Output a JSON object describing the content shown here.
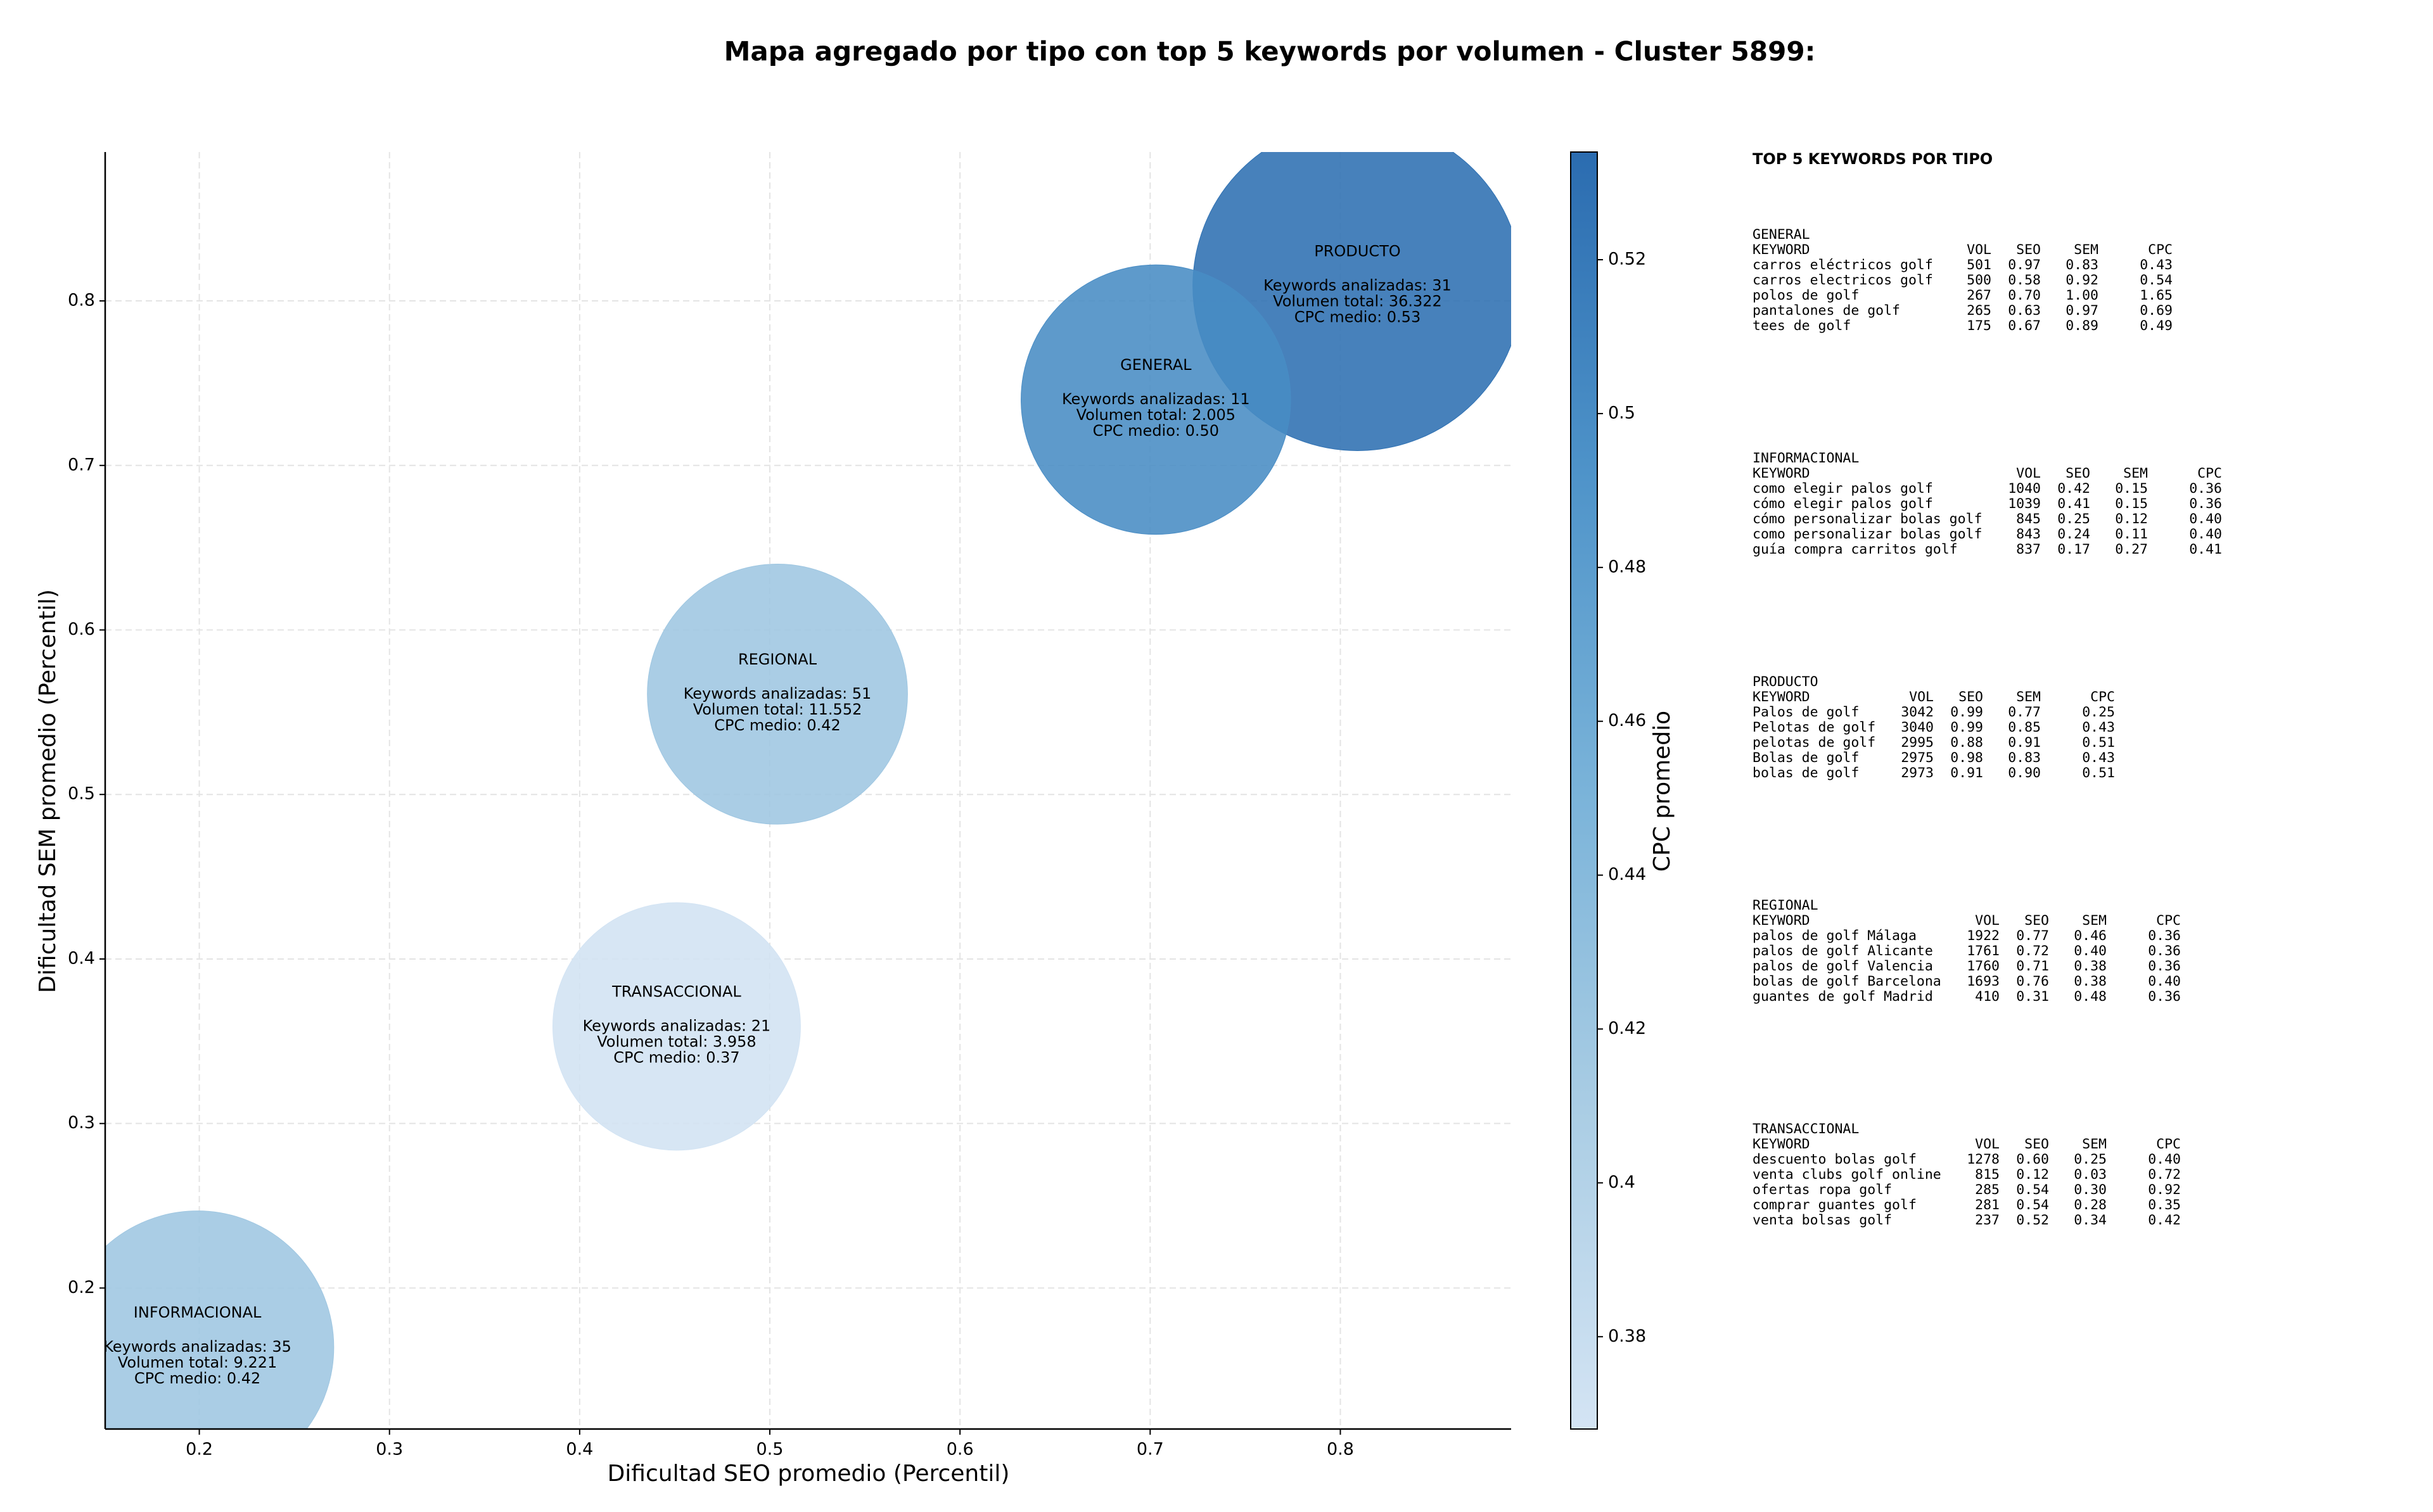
{
  "chart_data": {
    "type": "scatter",
    "title": "Mapa agregado por tipo con top 5 keywords por volumen - Cluster 5899:",
    "xlabel": "Dificultad SEO promedio (Percentil)",
    "ylabel": "Dificultad SEM promedio (Percentil)",
    "xlim": [
      0.1505,
      0.8898
    ],
    "ylim": [
      0.1143,
      0.8905
    ],
    "xticks": [
      0.2,
      0.3,
      0.4,
      0.5,
      0.6,
      0.7,
      0.8
    ],
    "yticks": [
      0.2,
      0.3,
      0.4,
      0.5,
      0.6,
      0.7,
      0.8
    ],
    "grid": true,
    "points": [
      {
        "name": "PRODUCTO",
        "x": 0.809,
        "y": 0.809,
        "size": 11025,
        "cpc": 0.53,
        "texts": [
          "Keywords analizadas: 31",
          "Volumen total: 36.322",
          "CPC medio: 0.53"
        ]
      },
      {
        "name": "GENERAL",
        "x": 0.703,
        "y": 0.74,
        "size": 7396,
        "cpc": 0.5,
        "texts": [
          "Keywords analizadas: 11",
          "Volumen total: 2.005",
          "CPC medio: 0.50"
        ]
      },
      {
        "name": "REGIONAL",
        "x": 0.504,
        "y": 0.561,
        "size": 6889,
        "cpc": 0.42,
        "texts": [
          "Keywords analizadas: 51",
          "Volumen total: 11.552",
          "CPC medio: 0.42"
        ]
      },
      {
        "name": "TRANSACCIONAL",
        "x": 0.451,
        "y": 0.359,
        "size": 6241,
        "cpc": 0.37,
        "texts": [
          "Keywords analizadas: 21",
          "Volumen total: 3.958",
          "CPC medio: 0.37"
        ]
      },
      {
        "name": "INFORMACIONAL",
        "x": 0.199,
        "y": 0.164,
        "size": 7569,
        "cpc": 0.42,
        "texts": [
          "Keywords analizadas: 35",
          "Volumen total: 9.221",
          "CPC medio: 0.42"
        ]
      }
    ],
    "colorbar": {
      "label": "CPC promedio",
      "lim": [
        0.368,
        0.534
      ],
      "ticks": [
        0.38,
        0.4,
        0.42,
        0.44,
        0.46,
        0.48,
        0.5,
        0.52
      ],
      "colors": [
        "#d4e4f4",
        "#aacde4",
        "#7ab3d9",
        "#4e93c9",
        "#2b6cb0"
      ]
    }
  },
  "keyword_panel": {
    "title": "TOP 5 KEYWORDS POR TIPO",
    "groups": [
      {
        "name": "GENERAL",
        "columns": [
          "KEYWORD",
          "VOL",
          "SEO",
          "SEM",
          "CPC"
        ],
        "rows": [
          [
            "carros eléctricos golf",
            "501",
            "0.97",
            "0.83",
            "0.43"
          ],
          [
            "carros electricos golf",
            "500",
            "0.58",
            "0.92",
            "0.54"
          ],
          [
            "polos de golf",
            "267",
            "0.70",
            "1.00",
            "1.65"
          ],
          [
            "pantalones de golf",
            "265",
            "0.63",
            "0.97",
            "0.69"
          ],
          [
            "tees de golf",
            "175",
            "0.67",
            "0.89",
            "0.49"
          ]
        ]
      },
      {
        "name": "INFORMACIONAL",
        "columns": [
          "KEYWORD",
          "VOL",
          "SEO",
          "SEM",
          "CPC"
        ],
        "rows": [
          [
            "como elegir palos golf",
            "1040",
            "0.42",
            "0.15",
            "0.36"
          ],
          [
            "cómo elegir palos golf",
            "1039",
            "0.41",
            "0.15",
            "0.36"
          ],
          [
            "cómo personalizar bolas golf",
            "845",
            "0.25",
            "0.12",
            "0.40"
          ],
          [
            "como personalizar bolas golf",
            "843",
            "0.24",
            "0.11",
            "0.40"
          ],
          [
            "guía compra carritos golf",
            "837",
            "0.17",
            "0.27",
            "0.41"
          ]
        ]
      },
      {
        "name": "PRODUCTO",
        "columns": [
          "KEYWORD",
          "VOL",
          "SEO",
          "SEM",
          "CPC"
        ],
        "rows": [
          [
            "Palos de golf",
            "3042",
            "0.99",
            "0.77",
            "0.25"
          ],
          [
            "Pelotas de golf",
            "3040",
            "0.99",
            "0.85",
            "0.43"
          ],
          [
            "pelotas de golf",
            "2995",
            "0.88",
            "0.91",
            "0.51"
          ],
          [
            "Bolas de golf",
            "2975",
            "0.98",
            "0.83",
            "0.43"
          ],
          [
            "bolas de golf",
            "2973",
            "0.91",
            "0.90",
            "0.51"
          ]
        ]
      },
      {
        "name": "REGIONAL",
        "columns": [
          "KEYWORD",
          "VOL",
          "SEO",
          "SEM",
          "CPC"
        ],
        "rows": [
          [
            "palos de golf Málaga",
            "1922",
            "0.77",
            "0.46",
            "0.36"
          ],
          [
            "palos de golf Alicante",
            "1761",
            "0.72",
            "0.40",
            "0.36"
          ],
          [
            "palos de golf Valencia",
            "1760",
            "0.71",
            "0.38",
            "0.36"
          ],
          [
            "bolas de golf Barcelona",
            "1693",
            "0.76",
            "0.38",
            "0.40"
          ],
          [
            "guantes de golf Madrid",
            "410",
            "0.31",
            "0.48",
            "0.36"
          ]
        ]
      },
      {
        "name": "TRANSACCIONAL",
        "columns": [
          "KEYWORD",
          "VOL",
          "SEO",
          "SEM",
          "CPC"
        ],
        "rows": [
          [
            "descuento bolas golf",
            "1278",
            "0.60",
            "0.25",
            "0.40"
          ],
          [
            "venta clubs golf online",
            "815",
            "0.12",
            "0.03",
            "0.72"
          ],
          [
            "ofertas ropa golf",
            "285",
            "0.54",
            "0.30",
            "0.92"
          ],
          [
            "comprar guantes golf",
            "281",
            "0.54",
            "0.28",
            "0.35"
          ],
          [
            "venta bolsas golf",
            "237",
            "0.52",
            "0.34",
            "0.42"
          ]
        ]
      }
    ]
  }
}
